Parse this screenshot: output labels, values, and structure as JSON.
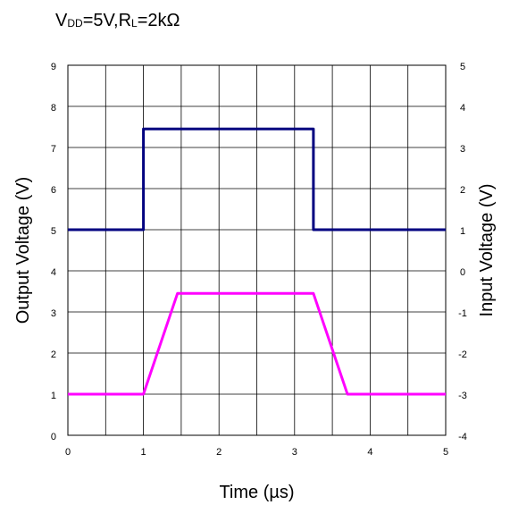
{
  "condition": {
    "vdd_label": "V",
    "vdd_sub": "DD",
    "vdd_value": "=5V,",
    "rl_label": "R",
    "rl_sub": "L",
    "rl_value": "=2kΩ"
  },
  "chart_data": {
    "type": "line",
    "title": "",
    "xlabel": "Time (µs)",
    "ylabel": "Output Voltage (V)",
    "y2label": "Input Voltage (V)",
    "xlim": [
      0,
      5
    ],
    "ylim": [
      0,
      9
    ],
    "y2lim": [
      -4,
      5
    ],
    "x_ticks": [
      "0",
      "1",
      "2",
      "3",
      "4",
      "5"
    ],
    "y_ticks": [
      "0",
      "1",
      "2",
      "3",
      "4",
      "5",
      "6",
      "7",
      "8",
      "9"
    ],
    "y2_ticks": [
      "-4",
      "-3",
      "-2",
      "-1",
      "0",
      "1",
      "2",
      "3",
      "4",
      "5"
    ],
    "grid": true,
    "series": [
      {
        "axis": "right",
        "color": "#000080",
        "x": [
          0,
          1.0,
          1.0,
          3.25,
          3.25,
          5
        ],
        "y": [
          1,
          1,
          3.45,
          3.45,
          1,
          1
        ]
      },
      {
        "axis": "left",
        "color": "#ff00ff",
        "x": [
          0,
          1.0,
          1.45,
          3.25,
          3.7,
          5
        ],
        "y": [
          1,
          1,
          3.45,
          3.45,
          1,
          1
        ]
      }
    ]
  }
}
